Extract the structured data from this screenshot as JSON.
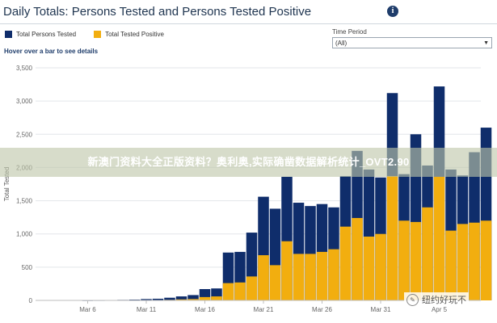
{
  "header": {
    "title": "Daily Totals: Persons Tested and Persons Tested Positive",
    "info_icon": "info-icon"
  },
  "legend": {
    "items": [
      {
        "label": "Total Persons Tested",
        "color": "#0f2d6b"
      },
      {
        "label": "Total Tested Positive",
        "color": "#f2ae0f"
      }
    ]
  },
  "hover_note": "Hover over a bar to see details",
  "time_period": {
    "label": "Time Period",
    "value": "(All)"
  },
  "watermark": "新澳门资料大全正版资料？奥利奥,实际确凿数据解析统计_OVT2.90",
  "badge": "纽约好玩不",
  "chart_data": {
    "type": "bar",
    "stacked": false,
    "ylabel": "Total Tested",
    "ylim": [
      0,
      3500
    ],
    "yticks": [
      0,
      500,
      1000,
      1500,
      2000,
      2500,
      3000,
      3500
    ],
    "ytick_labels": [
      "0",
      "500",
      "1,000",
      "1,500",
      "2,000",
      "2,500",
      "3,000",
      "3,500"
    ],
    "xtick_labels": [
      {
        "index": 0,
        "label": "Mar 6"
      },
      {
        "index": 5,
        "label": "Mar 11"
      },
      {
        "index": 10,
        "label": "Mar 16"
      },
      {
        "index": 15,
        "label": "Mar 21"
      },
      {
        "index": 20,
        "label": "Mar 26"
      },
      {
        "index": 25,
        "label": "Mar 31"
      },
      {
        "index": 30,
        "label": "Apr 5"
      }
    ],
    "grid": true,
    "series": [
      {
        "name": "Total Persons Tested",
        "color": "#0f2d6b",
        "values": [
          2,
          3,
          5,
          8,
          12,
          20,
          25,
          40,
          60,
          80,
          170,
          180,
          720,
          730,
          1020,
          1560,
          1380,
          1860,
          1470,
          1420,
          1450,
          1400,
          1870,
          2250,
          1970,
          1850,
          3120,
          1900,
          2500,
          2030,
          3220,
          1970,
          1880,
          2230,
          2600
        ]
      },
      {
        "name": "Total Tested Positive",
        "color": "#f2ae0f",
        "values": [
          0,
          0,
          0,
          1,
          2,
          3,
          4,
          8,
          15,
          20,
          50,
          60,
          260,
          270,
          360,
          680,
          530,
          890,
          700,
          700,
          730,
          770,
          1110,
          1240,
          960,
          1000,
          1870,
          1200,
          1180,
          1400,
          1860,
          1050,
          1150,
          1170,
          1200
        ]
      }
    ]
  }
}
